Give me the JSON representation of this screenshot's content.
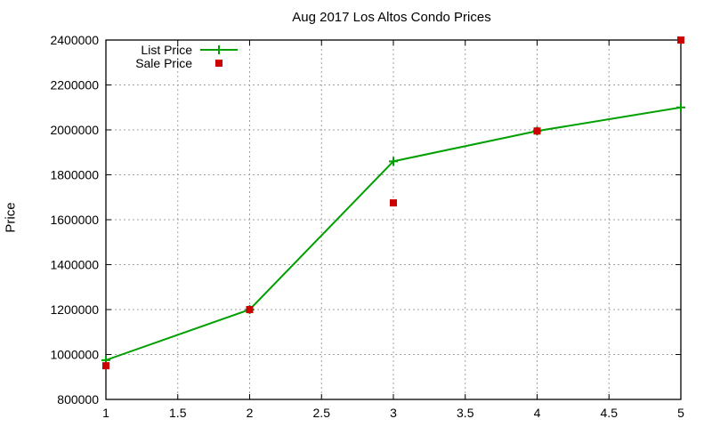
{
  "chart_data": {
    "type": "line",
    "title": "Aug 2017 Los Altos Condo Prices",
    "xlabel": "",
    "ylabel": "Price",
    "xlim": [
      1,
      5
    ],
    "ylim": [
      800000,
      2400000
    ],
    "x_ticks": [
      "1",
      "1.5",
      "2",
      "2.5",
      "3",
      "3.5",
      "4",
      "4.5",
      "5"
    ],
    "y_ticks": [
      "800000",
      "1000000",
      "1200000",
      "1400000",
      "1600000",
      "1800000",
      "2000000",
      "2200000",
      "2400000"
    ],
    "grid": true,
    "legend_position": "top-left",
    "x": [
      1,
      2,
      3,
      4,
      5
    ],
    "series": [
      {
        "name": "List Price",
        "style": "lines+points",
        "marker": "plus",
        "color": "#00a000",
        "values": [
          975000,
          1200000,
          1860000,
          1995000,
          2100000
        ]
      },
      {
        "name": "Sale Price",
        "style": "points",
        "marker": "square",
        "color": "#cc0000",
        "values": [
          950000,
          1200000,
          1675000,
          1995000,
          2400000
        ]
      }
    ]
  }
}
